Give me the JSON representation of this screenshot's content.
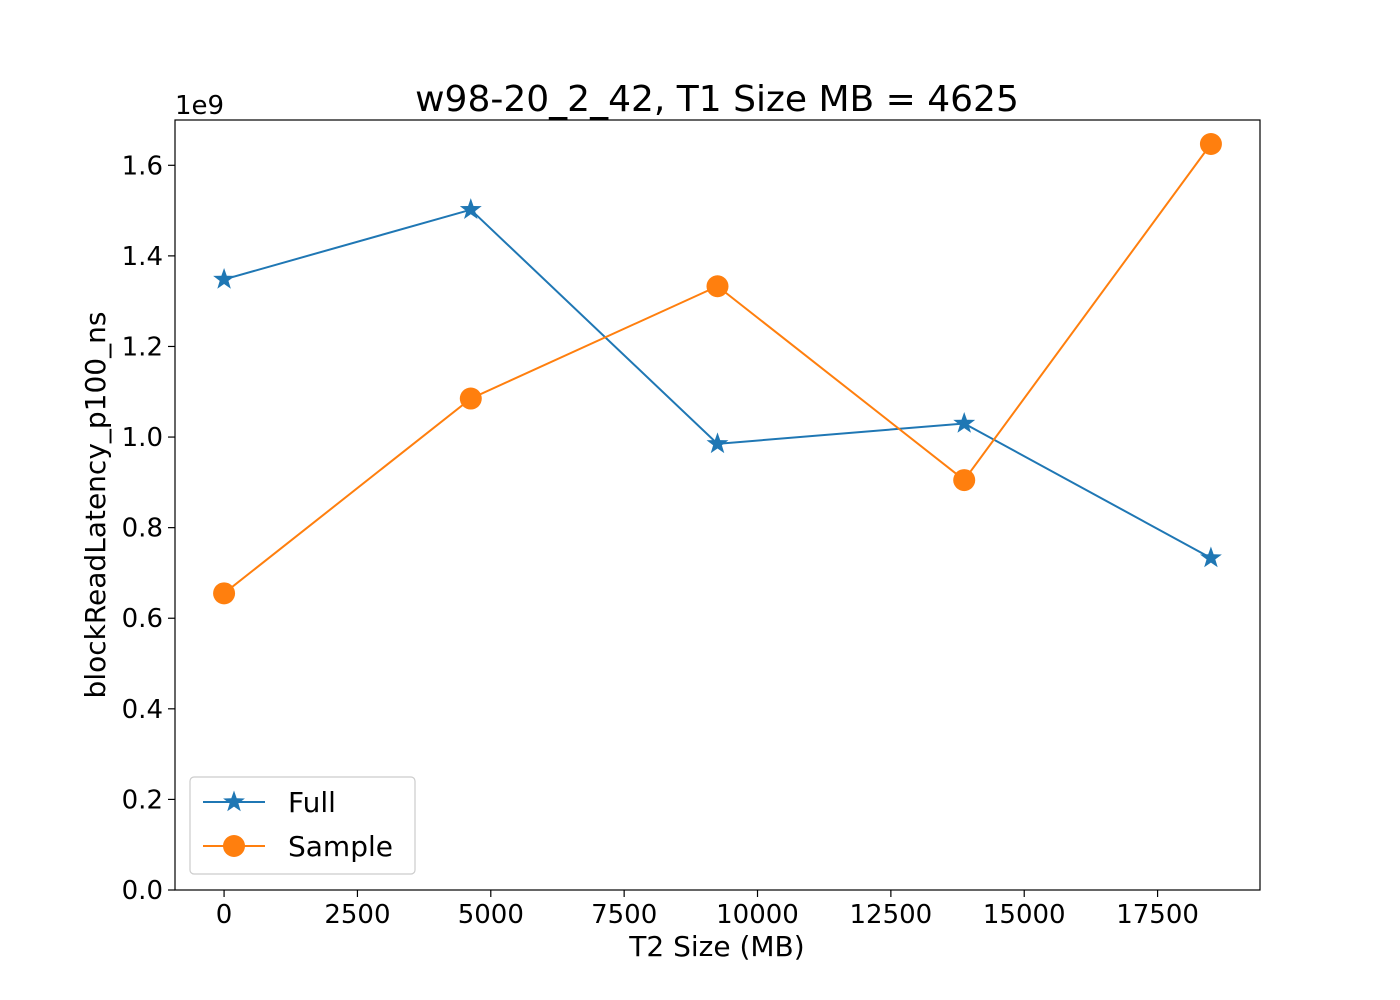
{
  "chart_data": {
    "type": "line",
    "title": "w98-20_2_42, T1 Size MB = 4625",
    "xlabel": "T2 Size (MB)",
    "ylabel": "blockReadLatency_p100_ns",
    "y_multiplier_label": "1e9",
    "xlim": [
      -920,
      19420
    ],
    "ylim": [
      0,
      1.7
    ],
    "x_ticks": [
      0,
      2500,
      5000,
      7500,
      10000,
      12500,
      15000,
      17500
    ],
    "y_ticks": [
      0.0,
      0.2,
      0.4,
      0.6,
      0.8,
      1.0,
      1.2,
      1.4,
      1.6
    ],
    "x_tick_labels": [
      "0",
      "2500",
      "5000",
      "7500",
      "10000",
      "12500",
      "15000",
      "17500"
    ],
    "y_tick_labels": [
      "0.0",
      "0.2",
      "0.4",
      "0.6",
      "0.8",
      "1.0",
      "1.2",
      "1.4",
      "1.6"
    ],
    "x": [
      0,
      4625,
      9250,
      13875,
      18500
    ],
    "grid": false,
    "legend_position": "lower-left",
    "series": [
      {
        "name": "Full",
        "marker": "star",
        "color": "#1f77b4",
        "values": [
          1.348,
          1.502,
          0.985,
          1.03,
          0.733
        ]
      },
      {
        "name": "Sample",
        "marker": "circle",
        "color": "#ff7f0e",
        "values": [
          0.655,
          1.085,
          1.333,
          0.905,
          1.647
        ]
      }
    ]
  }
}
